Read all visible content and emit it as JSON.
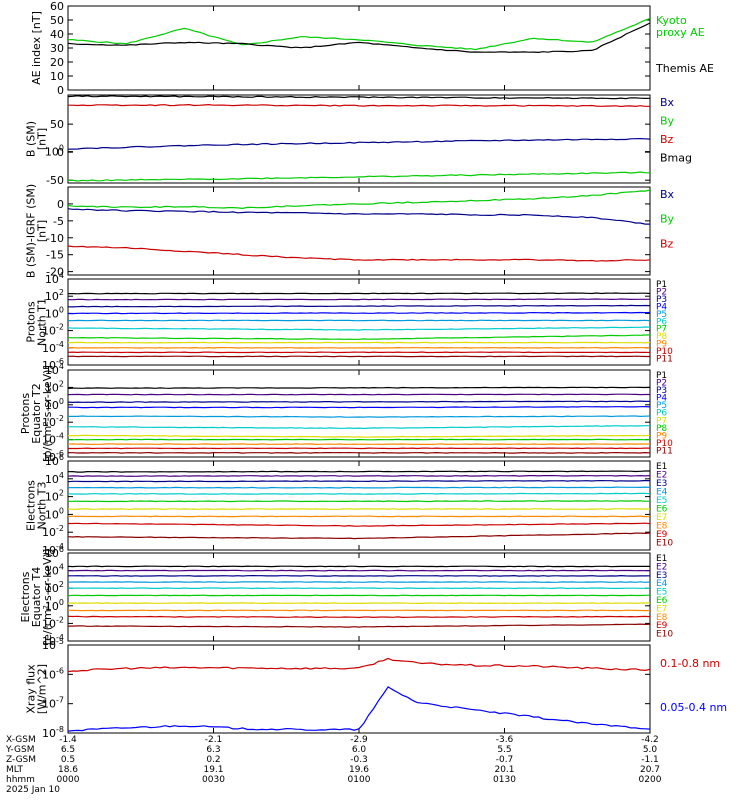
{
  "chart_data": [
    {
      "type": "line",
      "ylabel": "AE index [nT]",
      "ylim": [
        0,
        60
      ],
      "yticks": [
        "0",
        "10",
        "20",
        "30",
        "40",
        "50",
        "60"
      ],
      "x": [
        0,
        0.1,
        0.2,
        0.3,
        0.4,
        0.5,
        0.6,
        0.7,
        0.8,
        0.9,
        1.0
      ],
      "series": [
        {
          "name": "Kyoto proxy AE",
          "legend": [
            "Kyoto",
            "proxy AE"
          ],
          "color": "#00cc00",
          "values": [
            36,
            33,
            44,
            32,
            38,
            36,
            32,
            29,
            37,
            34,
            51
          ]
        },
        {
          "name": "Themis AE",
          "legend": [
            "Themis AE"
          ],
          "color": "#000000",
          "values": [
            33,
            32,
            34,
            33,
            30,
            34,
            30,
            27,
            27,
            28,
            48
          ]
        }
      ]
    },
    {
      "type": "line",
      "ylabel": [
        "B (SM)",
        "[nT]"
      ],
      "ylim": [
        -55,
        102
      ],
      "yticks": [
        "-50",
        "0",
        "50",
        "100"
      ],
      "x": [
        0,
        0.25,
        0.5,
        0.75,
        1.0
      ],
      "series": [
        {
          "name": "Bx",
          "color": "#00008b",
          "values": [
            6,
            13,
            17,
            21,
            24
          ]
        },
        {
          "name": "By",
          "color": "#00cc00",
          "values": [
            -51,
            -48,
            -44,
            -40,
            -36
          ]
        },
        {
          "name": "Bz",
          "color": "#cc0000",
          "values": [
            84,
            84,
            83,
            83,
            82
          ]
        },
        {
          "name": "Bmag",
          "color": "#000000",
          "values": [
            100,
            99,
            98,
            97,
            96
          ]
        }
      ]
    },
    {
      "type": "line",
      "ylabel": [
        "B (SM)-IGRF (SM)",
        "[nT]"
      ],
      "ylim": [
        -21,
        5
      ],
      "yticks": [
        "-20",
        "-15",
        "-10",
        "-5",
        "0"
      ],
      "x": [
        0,
        0.1,
        0.2,
        0.3,
        0.4,
        0.5,
        0.6,
        0.7,
        0.8,
        0.9,
        1.0
      ],
      "series": [
        {
          "name": "Bx",
          "color": "#00008b",
          "values": [
            -1.5,
            -2,
            -2.2,
            -2.5,
            -2.7,
            -3,
            -3,
            -3.2,
            -3.3,
            -4,
            -6
          ]
        },
        {
          "name": "By",
          "color": "#00cc00",
          "values": [
            -0.5,
            -1,
            -0.8,
            -1.2,
            -0.5,
            0,
            0.5,
            1,
            1.5,
            2.5,
            4
          ]
        },
        {
          "name": "Bz",
          "color": "#cc0000",
          "values": [
            -12.5,
            -13,
            -14,
            -15,
            -16,
            -16.5,
            -16.5,
            -16.5,
            -16.5,
            -16.8,
            -16.5
          ]
        }
      ]
    },
    {
      "type": "line",
      "ylabel": [
        "Protons",
        "North T1"
      ],
      "yscale": "log",
      "ylim": [
        1e-06,
        10000.0
      ],
      "yticks": [
        "10-6",
        "10-4",
        "10-2",
        "100",
        "102",
        "104"
      ],
      "series": [
        {
          "name": "P1",
          "color": "#000000",
          "values": [
            200,
            210,
            220
          ]
        },
        {
          "name": "P2",
          "color": "#4b0082",
          "values": [
            40,
            42,
            45
          ]
        },
        {
          "name": "P3",
          "color": "#00008b",
          "values": [
            6,
            7,
            8
          ]
        },
        {
          "name": "P4",
          "color": "#0000ff",
          "values": [
            1,
            1.1,
            1.2
          ]
        },
        {
          "name": "P5",
          "color": "#0099dd",
          "values": [
            0.15,
            0.15,
            0.15
          ]
        },
        {
          "name": "P6",
          "color": "#00cccc",
          "values": [
            0.02,
            0.012,
            0.025
          ]
        },
        {
          "name": "P7",
          "color": "#00cc00",
          "values": [
            0.0015,
            0.001,
            0.003
          ]
        },
        {
          "name": "P8",
          "color": "#dddd00",
          "values": [
            0.0004,
            0.0004,
            0.0004
          ]
        },
        {
          "name": "P9",
          "color": "#ff8800",
          "values": [
            0.0001,
            0.0001,
            0.0001
          ]
        },
        {
          "name": "P10",
          "color": "#cc0000",
          "values": [
            3e-05,
            3e-05,
            3e-05
          ]
        },
        {
          "name": "P11",
          "color": "#8b0000",
          "values": [
            1e-05,
            1e-05,
            1e-05
          ]
        }
      ]
    },
    {
      "type": "line",
      "ylabel": [
        "Protons",
        "Equator T2",
        "[p/(cm²-s-sr-keV)]"
      ],
      "yscale": "log",
      "ylim": [
        1e-06,
        10000.0
      ],
      "yticks": [
        "10-6",
        "10-4",
        "10-2",
        "100",
        "102",
        "104"
      ],
      "series": [
        {
          "name": "P1",
          "color": "#000000",
          "values": [
            80,
            90,
            100
          ]
        },
        {
          "name": "P2",
          "color": "#4b0082",
          "values": [
            15,
            15,
            16
          ]
        },
        {
          "name": "P3",
          "color": "#00008b",
          "values": [
            2,
            2.2,
            2.5
          ]
        },
        {
          "name": "P4",
          "color": "#0000ff",
          "values": [
            0.5,
            0.5,
            0.6
          ]
        },
        {
          "name": "P5",
          "color": "#0099dd",
          "values": [
            0.05,
            0.04,
            0.05
          ]
        },
        {
          "name": "P6",
          "color": "#00cccc",
          "values": [
            0.003,
            0.002,
            0.004
          ]
        },
        {
          "name": "P7",
          "color": "#dddd00",
          "values": [
            0.0003,
            0.0002,
            0.0003
          ]
        },
        {
          "name": "P8",
          "color": "#00cc00",
          "values": [
            0.0001,
            0.0001,
            0.0001
          ]
        },
        {
          "name": "P9",
          "color": "#ff8800",
          "values": [
            3e-05,
            3e-05,
            3e-05
          ]
        },
        {
          "name": "P10",
          "color": "#cc0000",
          "values": [
            1e-05,
            1e-05,
            1e-05
          ]
        },
        {
          "name": "P11",
          "color": "#8b0000",
          "values": [
            3e-06,
            3e-06,
            3e-06
          ]
        }
      ]
    },
    {
      "type": "line",
      "ylabel": [
        "Electrons",
        "North T3"
      ],
      "yscale": "log",
      "ylim": [
        0.0001,
        1000000.0
      ],
      "yticks": [
        "10-4",
        "10-2",
        "100",
        "102",
        "104",
        "106"
      ],
      "series": [
        {
          "name": "E1",
          "color": "#000000",
          "values": [
            60000,
            65000,
            70000
          ]
        },
        {
          "name": "E2",
          "color": "#4b0082",
          "values": [
            20000,
            21000,
            22000
          ]
        },
        {
          "name": "E3",
          "color": "#00008b",
          "values": [
            5000,
            5500,
            6000
          ]
        },
        {
          "name": "E4",
          "color": "#0099dd",
          "values": [
            1000,
            1000,
            1100
          ]
        },
        {
          "name": "E5",
          "color": "#00cccc",
          "values": [
            200,
            200,
            220
          ]
        },
        {
          "name": "E6",
          "color": "#00cc00",
          "values": [
            30,
            30,
            32
          ]
        },
        {
          "name": "E7",
          "color": "#dddd00",
          "values": [
            4,
            4,
            4
          ]
        },
        {
          "name": "E8",
          "color": "#ff8800",
          "values": [
            0.6,
            0.6,
            0.6
          ]
        },
        {
          "name": "E9",
          "color": "#cc0000",
          "values": [
            0.1,
            0.05,
            0.1
          ]
        },
        {
          "name": "E10",
          "color": "#8b0000",
          "values": [
            0.003,
            0.002,
            0.008
          ]
        }
      ]
    },
    {
      "type": "line",
      "ylabel": [
        "Electrons",
        "Equator T4",
        "[e/(cm²-s-sr-keV)]"
      ],
      "yscale": "log",
      "ylim": [
        0.0001,
        1000000.0
      ],
      "yticks": [
        "10-4",
        "10-2",
        "100",
        "102",
        "104",
        "106"
      ],
      "series": [
        {
          "name": "E1",
          "color": "#000000",
          "values": [
            30000,
            30000,
            30000
          ]
        },
        {
          "name": "E2",
          "color": "#4b0082",
          "values": [
            10000,
            10000,
            10000
          ]
        },
        {
          "name": "E3",
          "color": "#00008b",
          "values": [
            2500,
            2500,
            2500
          ]
        },
        {
          "name": "E4",
          "color": "#0099dd",
          "values": [
            500,
            500,
            500
          ]
        },
        {
          "name": "E5",
          "color": "#00cccc",
          "values": [
            100,
            100,
            100
          ]
        },
        {
          "name": "E6",
          "color": "#00cc00",
          "values": [
            15,
            15,
            15
          ]
        },
        {
          "name": "E7",
          "color": "#dddd00",
          "values": [
            2,
            2,
            2
          ]
        },
        {
          "name": "E8",
          "color": "#ff8800",
          "values": [
            0.3,
            0.3,
            0.3
          ]
        },
        {
          "name": "E9",
          "color": "#cc0000",
          "values": [
            0.06,
            0.05,
            0.06
          ]
        },
        {
          "name": "E10",
          "color": "#8b0000",
          "values": [
            0.005,
            0.004,
            0.008
          ]
        }
      ]
    },
    {
      "type": "line",
      "ylabel": [
        "Xray flux",
        "[W/m^2]"
      ],
      "yscale": "log",
      "ylim": [
        1e-08,
        1e-05
      ],
      "yticks": [
        "10-8",
        "10-7",
        "10-6",
        "10-5"
      ],
      "x": [
        0,
        0.1,
        0.2,
        0.3,
        0.4,
        0.5,
        0.55,
        0.6,
        0.7,
        0.8,
        0.9,
        1.0
      ],
      "series": [
        {
          "name": "0.1-0.8 nm",
          "color": "#cc0000",
          "values": [
            1.3e-06,
            1.6e-06,
            1.7e-06,
            1.65e-06,
            1.6e-06,
            1.6e-06,
            3.4e-06,
            2.4e-06,
            2e-06,
            1.9e-06,
            1.6e-06,
            1.4e-06
          ]
        },
        {
          "name": "0.05-0.4 nm",
          "color": "#0000ff",
          "values": [
            1.2e-08,
            1.5e-08,
            1.8e-08,
            1.4e-08,
            1.3e-08,
            1.3e-08,
            3.6e-07,
            1.1e-07,
            6e-08,
            3.5e-08,
            2e-08,
            1.4e-08
          ]
        }
      ]
    }
  ],
  "axis_table": {
    "labels": [
      "X-GSM",
      "Y-GSM",
      "Z-GSM",
      "MLT",
      "hhmm",
      "2025 Jan 10"
    ],
    "columns": [
      [
        "-1.4",
        "6.5",
        "0.5",
        "18.6",
        "0000"
      ],
      [
        "-2.1",
        "6.3",
        "0.2",
        "19.1",
        "0030"
      ],
      [
        "-2.9",
        "6.0",
        "-0.3",
        "19.6",
        "0100"
      ],
      [
        "-3.6",
        "5.5",
        "-0.7",
        "20.1",
        "0130"
      ],
      [
        "-4.2",
        "5.0",
        "-1.1",
        "20.7",
        "0200"
      ]
    ]
  }
}
